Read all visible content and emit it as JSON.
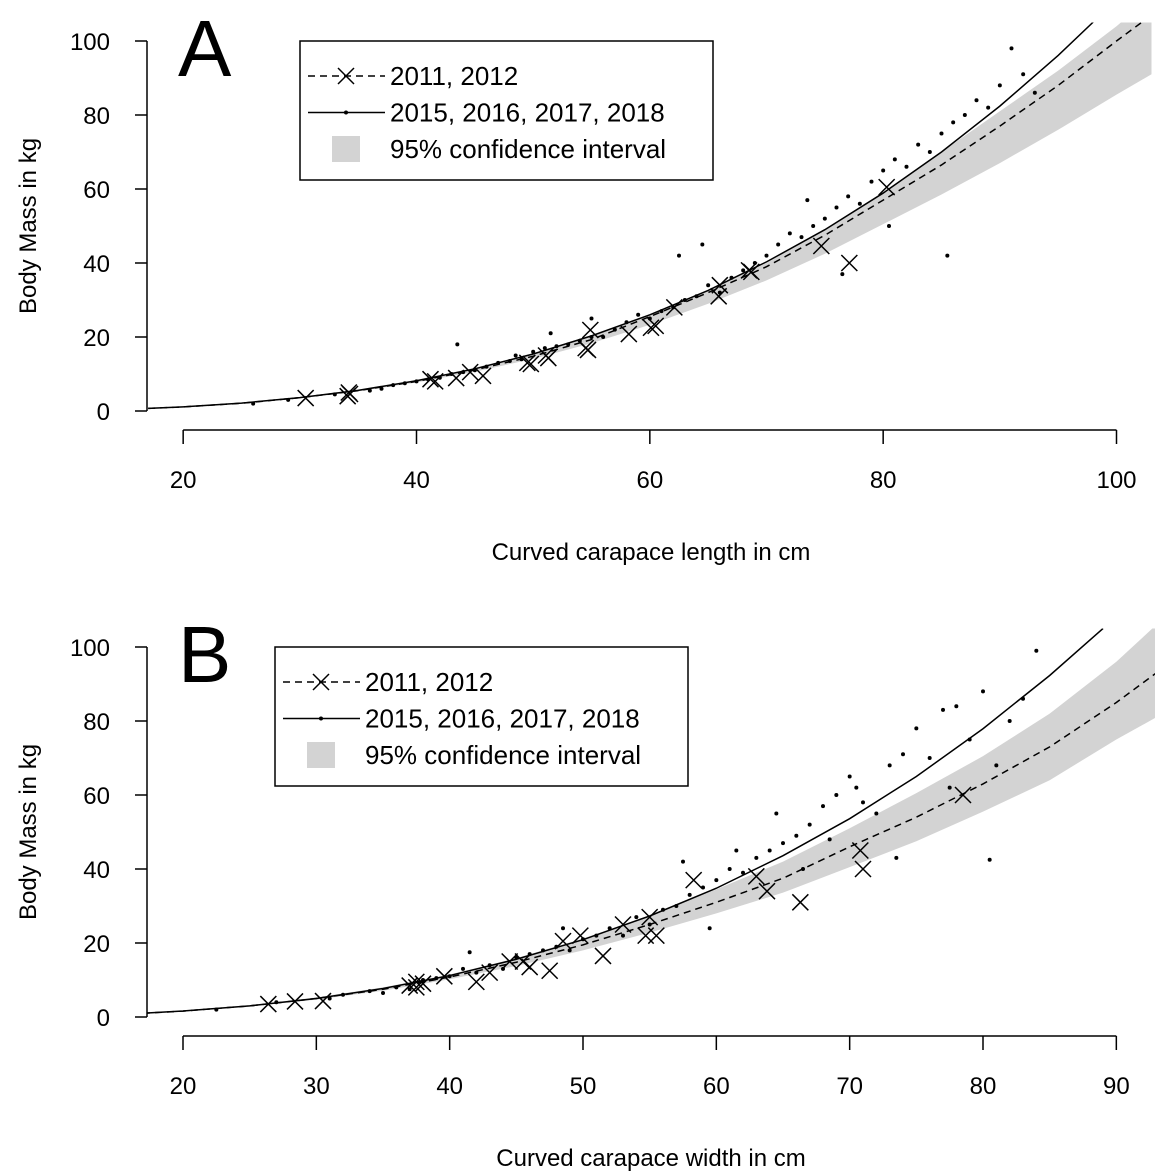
{
  "chart_data": [
    {
      "type": "scatter",
      "label": "A",
      "xlabel": "Curved carapace length in cm",
      "ylabel": "Body Mass in kg",
      "xlim": [
        16.9,
        103.3
      ],
      "ylim": [
        -2.5,
        105
      ],
      "xticks": [
        20,
        40,
        60,
        80,
        100
      ],
      "yticks": [
        0,
        20,
        40,
        60,
        80,
        100
      ],
      "band": {
        "name": "95% confidence interval",
        "color": "#d3d3d3",
        "x": [
          17,
          20,
          25,
          30,
          35,
          40,
          45,
          50,
          55,
          60,
          65,
          70,
          75,
          80,
          85,
          90,
          95,
          100,
          103
        ],
        "lower": [
          0.6,
          1.0,
          2.0,
          3.4,
          5.3,
          7.7,
          10.6,
          14.1,
          18.3,
          23.3,
          29.0,
          35.3,
          42.5,
          50.5,
          58.5,
          67,
          76,
          85.5,
          91
        ],
        "upper": [
          0.8,
          1.2,
          2.3,
          3.8,
          5.8,
          8.4,
          11.7,
          15.6,
          20.3,
          26.0,
          32.6,
          40,
          49,
          59,
          70,
          81,
          92,
          104,
          112
        ]
      },
      "series": [
        {
          "name": "2011, 2012",
          "color": "#000000",
          "line_style": "dashed",
          "marker": "x",
          "x": [
            17,
            20,
            25,
            30,
            35,
            40,
            45,
            50,
            55,
            60,
            65,
            70,
            75,
            80,
            85,
            90,
            95,
            100,
            103
          ],
          "values": [
            0.7,
            1.1,
            2.1,
            3.6,
            5.5,
            8.0,
            11.1,
            14.8,
            19.3,
            25.5,
            32,
            39,
            47.5,
            57,
            66.5,
            77,
            88,
            100,
            107
          ],
          "points_x": [
            30.5,
            34.1,
            34.3,
            34.2,
            41.2,
            41.6,
            43.4,
            44.6,
            45.7,
            49.5,
            49.8,
            51.1,
            51.3,
            54.5,
            54.7,
            54.9,
            58.2,
            60.1,
            60.5,
            62.1,
            65.9,
            66,
            68.5,
            68.7,
            74.7,
            77.1,
            80.3
          ],
          "points_values": [
            3.5,
            4,
            4.6,
            5,
            8.6,
            8,
            8.9,
            10.5,
            9.5,
            13,
            12.7,
            15,
            14.3,
            17,
            16.5,
            21.9,
            20.8,
            22.5,
            23,
            28,
            31,
            34,
            38,
            37.6,
            44.6,
            40,
            60.5
          ]
        },
        {
          "name": "2015, 2016, 2017, 2018",
          "color": "#000000",
          "line_style": "solid",
          "marker": "dot",
          "x": [
            17,
            20,
            25,
            30,
            35,
            40,
            45,
            50,
            55,
            60,
            65,
            70,
            75,
            80,
            85,
            90,
            95,
            98
          ],
          "values": [
            0.71,
            1.13,
            2.14,
            3.6,
            5.58,
            8.17,
            11.4,
            15.4,
            20.3,
            26.0,
            32.6,
            40.3,
            49.0,
            58.9,
            70.0,
            82.4,
            96.1,
            105.1
          ],
          "points_x": [
            26,
            29,
            33,
            36,
            37,
            38,
            39,
            40,
            41,
            42,
            43,
            43.5,
            44,
            45,
            46,
            47,
            48,
            48.5,
            49,
            50,
            51,
            51.5,
            52,
            53,
            54,
            55,
            55,
            56,
            57,
            58,
            59,
            60,
            61,
            62,
            62.5,
            63,
            64,
            64.5,
            65,
            66,
            67,
            68,
            69,
            70,
            71,
            72,
            73,
            73.5,
            74,
            75,
            76,
            76.5,
            77,
            78,
            79,
            80,
            80.5,
            81,
            82,
            83,
            84,
            85,
            85.5,
            86,
            87,
            88,
            89,
            90,
            91,
            92,
            93
          ],
          "points_values": [
            2,
            3,
            4.5,
            5.5,
            6,
            7,
            7.5,
            8,
            8.5,
            9,
            10,
            18,
            10.5,
            11,
            12,
            13,
            13.5,
            15,
            14,
            16,
            17,
            21,
            17.5,
            18,
            19,
            25,
            20,
            20,
            22,
            24,
            26,
            25,
            27,
            28,
            42,
            30,
            31,
            45,
            34,
            32,
            36,
            38,
            40,
            42,
            45,
            48,
            47,
            57,
            50,
            52,
            55,
            37,
            58,
            56,
            62,
            65,
            50,
            68,
            66,
            72,
            70,
            75,
            42,
            78,
            80,
            84,
            82,
            88,
            98,
            91,
            86
          ]
        }
      ]
    },
    {
      "type": "scatter",
      "label": "B",
      "xlabel": "Curved carapace width in cm",
      "ylabel": "Body Mass in kg",
      "xlim": [
        17.3,
        92.9
      ],
      "ylim": [
        -2.5,
        105
      ],
      "xticks": [
        20,
        30,
        40,
        50,
        60,
        70,
        80,
        90
      ],
      "yticks": [
        0,
        20,
        40,
        60,
        80,
        100
      ],
      "band": {
        "name": "95% confidence interval",
        "color": "#d3d3d3",
        "x": [
          17,
          20,
          25,
          30,
          35,
          40,
          45,
          50,
          55,
          60,
          65,
          70,
          75,
          80,
          85,
          90,
          93
        ],
        "lower": [
          0.9,
          1.5,
          2.8,
          4.7,
          7.1,
          10.2,
          13.8,
          18.0,
          22.8,
          28.0,
          33.6,
          40.5,
          47.5,
          55.5,
          64,
          75,
          81
        ],
        "upper": [
          1.1,
          1.7,
          3.2,
          5.3,
          8.0,
          11.5,
          15.9,
          21.2,
          27.4,
          34.5,
          42,
          51,
          60.5,
          70.5,
          82,
          96,
          106
        ]
      },
      "series": [
        {
          "name": "2011, 2012",
          "color": "#000000",
          "line_style": "dashed",
          "marker": "x",
          "x": [
            17,
            20,
            25,
            30,
            35,
            40,
            45,
            50,
            55,
            60,
            65,
            70,
            75,
            80,
            85,
            90,
            93
          ],
          "values": [
            1.0,
            1.6,
            3.0,
            5,
            7.5,
            10.8,
            14.8,
            19.5,
            25,
            31,
            37.5,
            46,
            54,
            63,
            73,
            85,
            93
          ],
          "points_x": [
            26.4,
            28.4,
            30.5,
            37,
            37.5,
            37.5,
            38,
            39.6,
            42,
            43,
            44.5,
            45.5,
            46,
            47.5,
            48.5,
            49.8,
            51.5,
            53,
            54.7,
            55,
            55.5,
            58.3,
            63,
            63.8,
            66.3,
            70.8,
            71,
            78.5
          ],
          "points_values": [
            3.5,
            4.2,
            4.3,
            8.5,
            9.5,
            8,
            9,
            11,
            9.5,
            12,
            15,
            15,
            13.5,
            12.5,
            20.5,
            22,
            16.5,
            25,
            22,
            27,
            22,
            37,
            38,
            34,
            31,
            45,
            40,
            60
          ]
        },
        {
          "name": "2015, 2016, 2017, 2018",
          "color": "#000000",
          "line_style": "solid",
          "marker": "dot",
          "x": [
            17,
            20,
            25,
            30,
            35,
            40,
            45,
            50,
            55,
            60,
            65,
            70,
            75,
            80,
            85,
            89
          ],
          "values": [
            1.02,
            1.61,
            3.0,
            5,
            7.7,
            11.2,
            15.6,
            20.9,
            27.3,
            34.8,
            43.6,
            53.6,
            65.0,
            77.9,
            92.3,
            105
          ],
          "points_x": [
            22.5,
            27,
            31,
            32,
            34,
            35,
            36,
            37,
            38,
            39,
            40,
            41,
            41.5,
            42,
            43,
            44,
            45,
            46,
            47,
            48,
            48.5,
            49,
            50,
            51,
            52,
            53,
            54,
            55,
            56,
            57,
            57.5,
            58,
            59,
            59.5,
            60,
            61,
            61.5,
            62,
            63,
            64,
            64.5,
            65,
            66,
            66.5,
            67,
            68,
            68.5,
            69,
            70,
            70.5,
            71,
            72,
            73,
            73.5,
            74,
            75,
            76,
            77,
            77.5,
            78,
            79,
            80,
            80.5,
            81,
            82,
            83,
            84
          ],
          "points_values": [
            2,
            4,
            5,
            6,
            7,
            6.5,
            8,
            7.5,
            10,
            10.5,
            11,
            13,
            17.5,
            12,
            14,
            13,
            16,
            17,
            18,
            19,
            24,
            18,
            21,
            22,
            24,
            22,
            27,
            25,
            29,
            30,
            42,
            33,
            35,
            24,
            37,
            40,
            45,
            39,
            43,
            45,
            55,
            47,
            49,
            40,
            52,
            57,
            48,
            60,
            65,
            62,
            58,
            55,
            68,
            43,
            71,
            78,
            70,
            83,
            62,
            84,
            75,
            88,
            42.5,
            68,
            80,
            86,
            99
          ]
        }
      ]
    }
  ]
}
